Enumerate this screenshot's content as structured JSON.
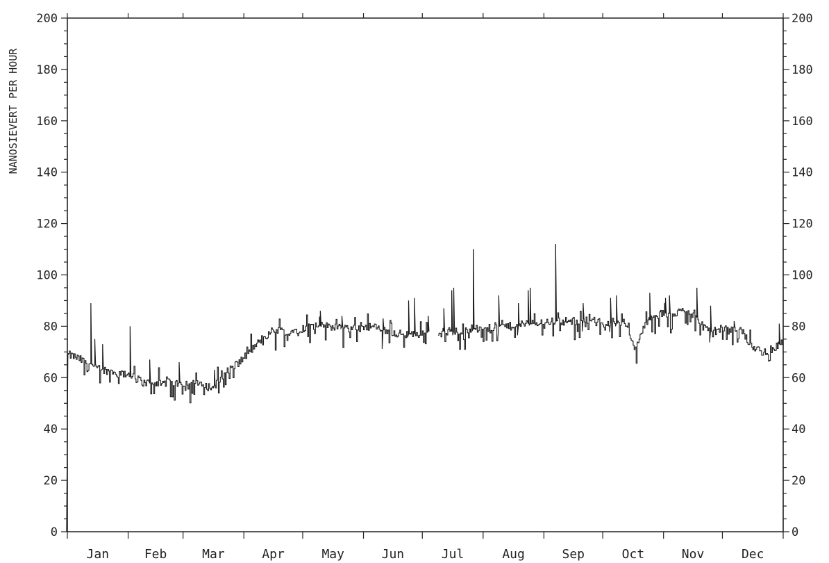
{
  "chart_data": {
    "type": "line",
    "title": "",
    "xlabel": "",
    "ylabel": "NANOSIEVERT PER HOUR",
    "ylim": [
      0,
      200
    ],
    "xlim": [
      1,
      366
    ],
    "grid": false,
    "legend": "none",
    "y_major_ticks": [
      0,
      20,
      40,
      60,
      80,
      100,
      120,
      140,
      160,
      180,
      200
    ],
    "y_minor_step": 5,
    "months": [
      {
        "label": "Jan",
        "start_day": 1
      },
      {
        "label": "Feb",
        "start_day": 32
      },
      {
        "label": "Mar",
        "start_day": 60
      },
      {
        "label": "Apr",
        "start_day": 91
      },
      {
        "label": "May",
        "start_day": 121
      },
      {
        "label": "Jun",
        "start_day": 152
      },
      {
        "label": "Jul",
        "start_day": 182
      },
      {
        "label": "Aug",
        "start_day": 213
      },
      {
        "label": "Sep",
        "start_day": 244
      },
      {
        "label": "Oct",
        "start_day": 274
      },
      {
        "label": "Nov",
        "start_day": 305
      },
      {
        "label": "Dec",
        "start_day": 335
      }
    ],
    "series": [
      {
        "color": "#1a1a1a",
        "baseline_x": [
          1,
          5,
          10,
          15,
          20,
          25,
          30,
          35,
          40,
          45,
          50,
          55,
          60,
          65,
          70,
          75,
          80,
          85,
          90,
          95,
          100,
          105,
          110,
          115,
          120,
          125,
          130,
          135,
          140,
          145,
          150,
          155,
          160,
          165,
          170,
          175,
          180,
          185,
          190,
          195,
          200,
          205,
          210,
          215,
          220,
          225,
          230,
          235,
          240,
          245,
          250,
          255,
          260,
          265,
          270,
          275,
          280,
          285,
          290,
          295,
          300,
          305,
          310,
          315,
          320,
          325,
          330,
          335,
          340,
          345,
          350,
          355,
          360,
          366
        ],
        "baseline_y": [
          69,
          68,
          66,
          65,
          63,
          62,
          61,
          60,
          58,
          58,
          58,
          58,
          58,
          58,
          57,
          56,
          61,
          64,
          67,
          71,
          75,
          78,
          78,
          78,
          79,
          80,
          80,
          80,
          80,
          79,
          80,
          80,
          79,
          78,
          77,
          77,
          77,
          78,
          78,
          78,
          78,
          79,
          79,
          79,
          80,
          80,
          80,
          81,
          81,
          82,
          82,
          82,
          82,
          83,
          82,
          82,
          81,
          82,
          71,
          80,
          84,
          85,
          85,
          86,
          86,
          80,
          78,
          79,
          80,
          78,
          72,
          70,
          71,
          74
        ],
        "drop_x": [
          0.6,
          1.3
        ],
        "drop_y": [
          0,
          69
        ],
        "gap_days": [
          185,
          190
        ],
        "spikes": [
          {
            "x": 13,
            "y": 89
          },
          {
            "x": 15,
            "y": 75
          },
          {
            "x": 19,
            "y": 73
          },
          {
            "x": 33,
            "y": 80
          },
          {
            "x": 43,
            "y": 67
          },
          {
            "x": 58,
            "y": 66
          },
          {
            "x": 76,
            "y": 63
          },
          {
            "x": 130,
            "y": 86
          },
          {
            "x": 141,
            "y": 84
          },
          {
            "x": 162,
            "y": 83
          },
          {
            "x": 175,
            "y": 90
          },
          {
            "x": 178,
            "y": 91
          },
          {
            "x": 185,
            "y": 84
          },
          {
            "x": 193,
            "y": 87
          },
          {
            "x": 197,
            "y": 94
          },
          {
            "x": 198,
            "y": 95
          },
          {
            "x": 208,
            "y": 110
          },
          {
            "x": 221,
            "y": 92
          },
          {
            "x": 231,
            "y": 89
          },
          {
            "x": 236,
            "y": 94
          },
          {
            "x": 237,
            "y": 95
          },
          {
            "x": 250,
            "y": 112
          },
          {
            "x": 264,
            "y": 89
          },
          {
            "x": 278,
            "y": 91
          },
          {
            "x": 281,
            "y": 92
          },
          {
            "x": 298,
            "y": 93
          },
          {
            "x": 306,
            "y": 91
          },
          {
            "x": 308,
            "y": 92
          },
          {
            "x": 322,
            "y": 95
          },
          {
            "x": 329,
            "y": 88
          },
          {
            "x": 341,
            "y": 82
          },
          {
            "x": 364,
            "y": 81
          }
        ]
      }
    ]
  }
}
